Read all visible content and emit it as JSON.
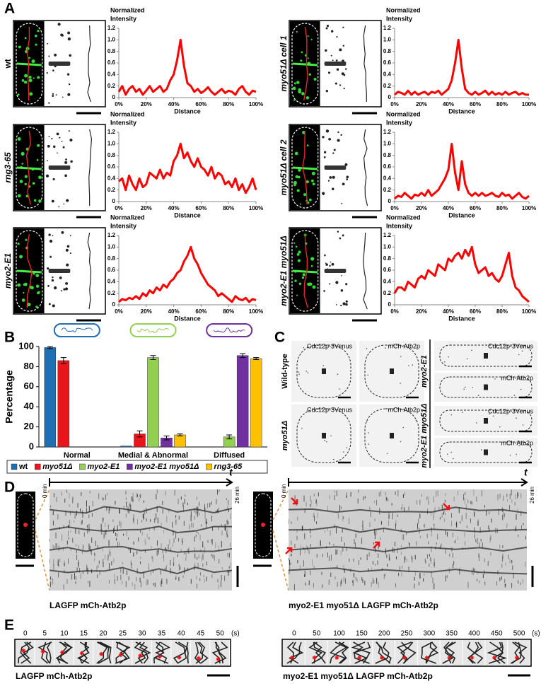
{
  "panel_labels": [
    "A",
    "B",
    "C",
    "D",
    "E"
  ],
  "chart_data": [
    {
      "type": "line",
      "label": "wt",
      "y_label": [
        "Normalized",
        "Intensity"
      ],
      "x_label": "Distance",
      "x": [
        0,
        2.5,
        5,
        7.5,
        10,
        12.5,
        15,
        17.5,
        20,
        22.5,
        25,
        27.5,
        30,
        32.5,
        35,
        37.5,
        40,
        42.5,
        45,
        47.5,
        50,
        52.5,
        55,
        57.5,
        60,
        62.5,
        65,
        67.5,
        70,
        72.5,
        75,
        77.5,
        80,
        82.5,
        85,
        87.5,
        90,
        92.5,
        95,
        97.5,
        100
      ],
      "series": [
        {
          "color": "#ff0000",
          "values": [
            0.1,
            0.2,
            0.05,
            0.15,
            0.2,
            0.1,
            0.15,
            0.05,
            0.12,
            0.2,
            0.1,
            0.15,
            0.2,
            0.1,
            0.15,
            0.3,
            0.4,
            0.65,
            1.0,
            0.55,
            0.25,
            0.2,
            0.1,
            0.15,
            0.08,
            0.12,
            0.18,
            0.1,
            0.05,
            0.1,
            0.15,
            0.08,
            0.12,
            0.1,
            0.05,
            0.15,
            0.2,
            0.1,
            0.05,
            0.12,
            0.1
          ]
        }
      ],
      "xlim": [
        0,
        100
      ],
      "ylim": [
        0,
        1.2
      ],
      "xticks": [
        {
          "value": 0,
          "label": "0%"
        },
        {
          "value": 20,
          "label": "20%"
        },
        {
          "value": 40,
          "label": "40%"
        },
        {
          "value": 60,
          "label": "60%"
        },
        {
          "value": 80,
          "label": "80%"
        },
        {
          "value": 100,
          "label": "100%"
        }
      ],
      "yticks": [
        0,
        0.2,
        0.4,
        0.6,
        0.8,
        {
          "value": 1,
          "label": "1.0"
        },
        1.2
      ]
    },
    {
      "type": "line",
      "label": "rng3-65",
      "y_label": [
        "Normalized",
        "Intensity"
      ],
      "x_label": "Distance",
      "x": [
        0,
        2.5,
        5,
        7.5,
        10,
        12.5,
        15,
        17.5,
        20,
        22.5,
        25,
        27.5,
        30,
        32.5,
        35,
        37.5,
        40,
        42.5,
        45,
        47.5,
        50,
        52.5,
        55,
        57.5,
        60,
        62.5,
        65,
        67.5,
        70,
        72.5,
        75,
        77.5,
        80,
        82.5,
        85,
        87.5,
        90,
        92.5,
        95,
        97.5,
        100
      ],
      "series": [
        {
          "color": "#ff0000",
          "values": [
            0.35,
            0.4,
            0.2,
            0.45,
            0.3,
            0.2,
            0.4,
            0.25,
            0.3,
            0.5,
            0.45,
            0.4,
            0.55,
            0.4,
            0.5,
            0.45,
            0.7,
            0.8,
            1.0,
            0.75,
            0.85,
            0.7,
            0.6,
            0.75,
            0.6,
            0.55,
            0.45,
            0.6,
            0.4,
            0.5,
            0.45,
            0.3,
            0.35,
            0.25,
            0.4,
            0.2,
            0.3,
            0.15,
            0.25,
            0.4,
            0.2
          ]
        }
      ],
      "xlim": [
        0,
        100
      ],
      "ylim": [
        0,
        1.2
      ],
      "xticks": [
        {
          "value": 0,
          "label": "0%"
        },
        {
          "value": 20,
          "label": "20%"
        },
        {
          "value": 40,
          "label": "40%"
        },
        {
          "value": 60,
          "label": "60%"
        },
        {
          "value": 80,
          "label": "80%"
        },
        {
          "value": 100,
          "label": "100%"
        }
      ],
      "yticks": [
        0,
        0.2,
        0.4,
        0.6,
        0.8,
        {
          "value": 1,
          "label": "1.0"
        },
        1.2
      ]
    },
    {
      "type": "line",
      "label": "myo2-E1",
      "y_label": [
        "Normalized",
        "Intensity"
      ],
      "x_label": "Distance",
      "x": [
        0,
        2.5,
        5,
        7.5,
        10,
        12.5,
        15,
        17.5,
        20,
        22.5,
        25,
        27.5,
        30,
        32.5,
        35,
        37.5,
        40,
        42.5,
        45,
        47.5,
        50,
        52.5,
        55,
        57.5,
        60,
        62.5,
        65,
        67.5,
        70,
        72.5,
        75,
        77.5,
        80,
        82.5,
        85,
        87.5,
        90,
        92.5,
        95,
        97.5,
        100
      ],
      "series": [
        {
          "color": "#ff0000",
          "values": [
            0.05,
            0.1,
            0.08,
            0.12,
            0.1,
            0.15,
            0.1,
            0.2,
            0.15,
            0.25,
            0.2,
            0.3,
            0.25,
            0.35,
            0.3,
            0.4,
            0.45,
            0.55,
            0.6,
            0.75,
            0.85,
            1.0,
            0.8,
            0.7,
            0.55,
            0.45,
            0.35,
            0.3,
            0.25,
            0.15,
            0.2,
            0.15,
            0.1,
            0.05,
            0.15,
            0.1,
            0.08,
            0.12,
            0.05,
            0.1,
            0.08
          ]
        }
      ],
      "xlim": [
        0,
        100
      ],
      "ylim": [
        0,
        1.2
      ],
      "xticks": [
        {
          "value": 0,
          "label": "0%"
        },
        {
          "value": 20,
          "label": "20%"
        },
        {
          "value": 40,
          "label": "40%"
        },
        {
          "value": 60,
          "label": "60%"
        },
        {
          "value": 80,
          "label": "80%"
        },
        {
          "value": 100,
          "label": "100%"
        }
      ],
      "yticks": [
        0,
        0.2,
        0.4,
        0.6,
        0.8,
        {
          "value": 1,
          "label": "1.0"
        },
        1.2
      ]
    },
    {
      "type": "line",
      "label": "myo51Δ cell 1",
      "y_label": [
        "Normalized",
        "Intensity"
      ],
      "x_label": "Distance",
      "x": [
        0,
        2.5,
        5,
        7.5,
        10,
        12.5,
        15,
        17.5,
        20,
        22.5,
        25,
        27.5,
        30,
        32.5,
        35,
        37.5,
        40,
        42.5,
        45,
        47.5,
        50,
        52.5,
        55,
        57.5,
        60,
        62.5,
        65,
        67.5,
        70,
        72.5,
        75,
        77.5,
        80,
        82.5,
        85,
        87.5,
        90,
        92.5,
        95,
        97.5,
        100
      ],
      "series": [
        {
          "color": "#ff0000",
          "values": [
            0.05,
            0.1,
            0.08,
            0.05,
            0.12,
            0.05,
            0.1,
            0.05,
            0.08,
            0.1,
            0.05,
            0.1,
            0.08,
            0.12,
            0.05,
            0.1,
            0.15,
            0.3,
            0.6,
            1.0,
            0.5,
            0.15,
            0.08,
            0.05,
            0.1,
            0.05,
            0.08,
            0.12,
            0.05,
            0.1,
            0.05,
            0.08,
            0.05,
            0.1,
            0.05,
            0.08,
            0.1,
            0.05,
            0.08,
            0.05,
            0.05
          ]
        }
      ],
      "xlim": [
        0,
        100
      ],
      "ylim": [
        0,
        1.2
      ],
      "xticks": [
        {
          "value": 0,
          "label": "0%"
        },
        {
          "value": 20,
          "label": "20%"
        },
        {
          "value": 40,
          "label": "40%"
        },
        {
          "value": 60,
          "label": "60%"
        },
        {
          "value": 80,
          "label": "80%"
        },
        {
          "value": 100,
          "label": "100%"
        }
      ],
      "yticks": [
        0,
        0.2,
        0.4,
        0.6,
        0.8,
        {
          "value": 1,
          "label": "1.0"
        },
        1.2
      ]
    },
    {
      "type": "line",
      "label": "myo51Δ cell 2",
      "y_label": [
        "Normalized",
        "Intensity"
      ],
      "x_label": "Distance",
      "x": [
        0,
        2.5,
        5,
        7.5,
        10,
        12.5,
        15,
        17.5,
        20,
        22.5,
        25,
        27.5,
        30,
        32.5,
        35,
        37.5,
        40,
        42.5,
        45,
        47.5,
        50,
        52.5,
        55,
        57.5,
        60,
        62.5,
        65,
        67.5,
        70,
        72.5,
        75,
        77.5,
        80,
        82.5,
        85,
        87.5,
        90,
        92.5,
        95,
        97.5,
        100
      ],
      "series": [
        {
          "color": "#ff0000",
          "values": [
            0.05,
            0.1,
            0.08,
            0.15,
            0.1,
            0.05,
            0.12,
            0.1,
            0.15,
            0.1,
            0.2,
            0.1,
            0.15,
            0.2,
            0.3,
            0.4,
            0.55,
            1.0,
            0.5,
            0.2,
            0.7,
            0.3,
            0.15,
            0.1,
            0.15,
            0.1,
            0.15,
            0.1,
            0.12,
            0.15,
            0.1,
            0.08,
            0.15,
            0.1,
            0.12,
            0.05,
            0.1,
            0.15,
            0.08,
            0.05,
            0.1
          ]
        }
      ],
      "xlim": [
        0,
        100
      ],
      "ylim": [
        0,
        1.2
      ],
      "xticks": [
        {
          "value": 0,
          "label": "0%"
        },
        {
          "value": 20,
          "label": "20%"
        },
        {
          "value": 40,
          "label": "40%"
        },
        {
          "value": 60,
          "label": "60%"
        },
        {
          "value": 80,
          "label": "80%"
        },
        {
          "value": 100,
          "label": "100%"
        }
      ],
      "yticks": [
        0,
        0.2,
        0.4,
        0.6,
        0.8,
        {
          "value": 1,
          "label": "1.0"
        },
        1.2
      ]
    },
    {
      "type": "line",
      "label": "myo2-E1 myo51Δ",
      "y_label": [
        "Normalized",
        "Intensity"
      ],
      "x_label": "Distance",
      "x": [
        0,
        2.5,
        5,
        7.5,
        10,
        12.5,
        15,
        17.5,
        20,
        22.5,
        25,
        27.5,
        30,
        32.5,
        35,
        37.5,
        40,
        42.5,
        45,
        47.5,
        50,
        52.5,
        55,
        57.5,
        60,
        62.5,
        65,
        67.5,
        70,
        72.5,
        75,
        77.5,
        80,
        82.5,
        85,
        87.5,
        90,
        92.5,
        95,
        97.5,
        100
      ],
      "series": [
        {
          "color": "#ff0000",
          "values": [
            0.2,
            0.3,
            0.3,
            0.25,
            0.4,
            0.35,
            0.3,
            0.45,
            0.5,
            0.45,
            0.6,
            0.55,
            0.5,
            0.7,
            0.65,
            0.6,
            0.8,
            0.75,
            0.85,
            0.9,
            0.8,
            0.95,
            0.85,
            1.0,
            0.7,
            0.55,
            0.6,
            0.65,
            0.5,
            0.55,
            0.45,
            0.4,
            0.5,
            0.7,
            0.9,
            0.5,
            0.3,
            0.25,
            0.15,
            0.1,
            0.05
          ]
        }
      ],
      "xlim": [
        0,
        100
      ],
      "ylim": [
        0,
        1.2
      ],
      "xticks": [
        {
          "value": 0,
          "label": "0%"
        },
        {
          "value": 20,
          "label": "20%"
        },
        {
          "value": 40,
          "label": "40%"
        },
        {
          "value": 60,
          "label": "60%"
        },
        {
          "value": 80,
          "label": "80%"
        },
        {
          "value": 100,
          "label": "100%"
        }
      ],
      "yticks": [
        0,
        0.2,
        0.4,
        0.6,
        0.8,
        {
          "value": 1,
          "label": "1.0"
        },
        1.2
      ]
    },
    {
      "type": "bar",
      "y_label": "Percentage",
      "categories": [
        "Normal",
        "Medial & Abnormal",
        "Diffused"
      ],
      "series": [
        {
          "name": "wt",
          "color": "#1f6fb5",
          "values": [
            99,
            1,
            0
          ],
          "errors": [
            1,
            0,
            0
          ]
        },
        {
          "name": "myo51Δ",
          "color": "#e8161b",
          "values": [
            86,
            13,
            0
          ],
          "errors": [
            3,
            3,
            0
          ]
        },
        {
          "name": "myo2-E1",
          "color": "#92d050",
          "values": [
            0,
            89,
            10
          ],
          "errors": [
            0,
            2,
            2
          ]
        },
        {
          "name": "myo2-E1 myo51Δ",
          "color": "#7030a0",
          "values": [
            0,
            9,
            91
          ],
          "errors": [
            0,
            2,
            2
          ]
        },
        {
          "name": "rng3-65",
          "color": "#ffc000",
          "values": [
            0,
            12,
            88
          ],
          "errors": [
            0,
            1,
            1
          ]
        }
      ],
      "ylim": [
        0,
        100
      ],
      "yticks": [
        0,
        20,
        40,
        60,
        80,
        100
      ],
      "legend": "bottom"
    }
  ],
  "panel_c": {
    "row_labels": [
      "Wild-type",
      "myo51Δ",
      "myo2-E1",
      "myo2-E1 myo51Δ"
    ],
    "image_labels": [
      "Cdc12p-3Venus",
      "mCh-Atb2p",
      "Cdc12p-3Venus",
      "mCh-Atb2p",
      "Cdc12p-3Venus",
      "mCh-Atb2p",
      "Cdc12p-3Venus",
      "mCh-Atb2p"
    ]
  },
  "panel_d": {
    "axis": "t",
    "start": "0 min",
    "end": "26 min",
    "captions": [
      "LAGFP mCh-Atb2p",
      "myo2-E1 myo51Δ LAGFP mCh-Atb2p"
    ]
  },
  "panel_e": {
    "unit": "(s)",
    "strips": [
      {
        "times": [
          0,
          5,
          10,
          15,
          20,
          25,
          30,
          35,
          40,
          45,
          50
        ],
        "caption": "LAGFP mCh-Atb2p"
      },
      {
        "times": [
          0,
          50,
          100,
          150,
          200,
          250,
          300,
          350,
          400,
          450,
          500
        ],
        "caption": "myo2-E1 myo51Δ LAGFP mCh-Atb2p"
      }
    ]
  }
}
